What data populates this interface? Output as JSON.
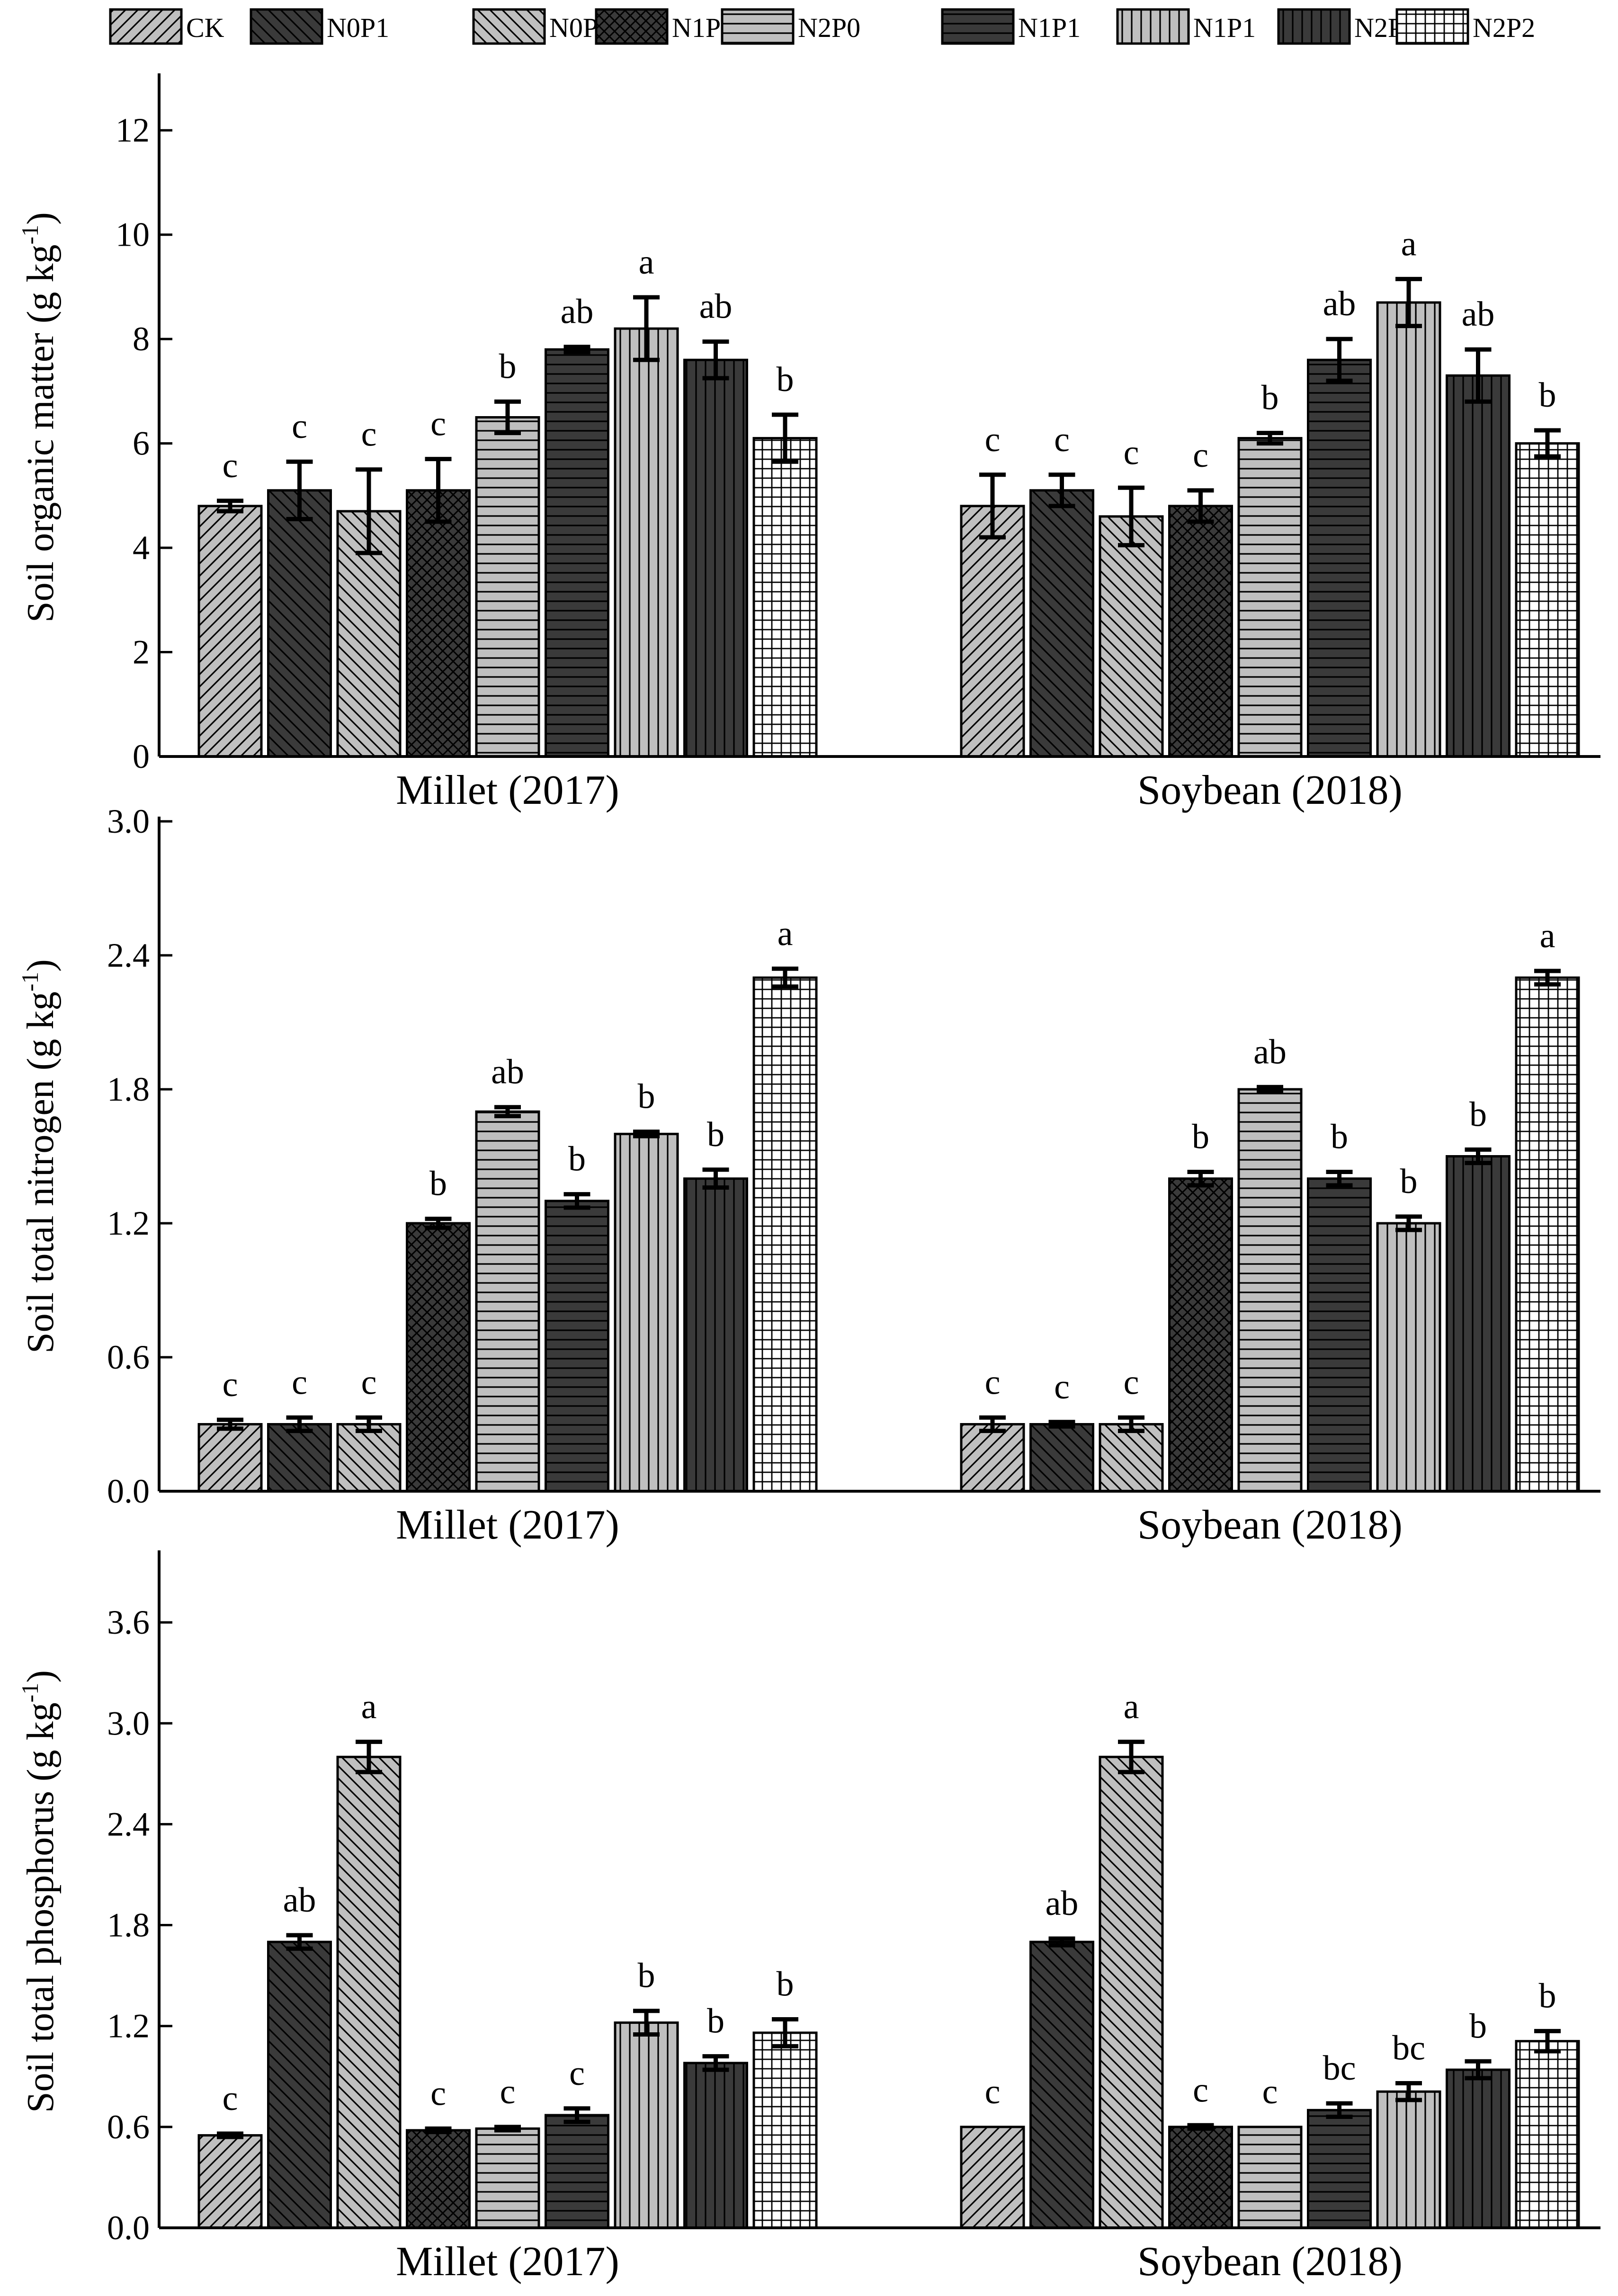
{
  "legend": {
    "entries": [
      {
        "label": "CK",
        "pattern": "diag-right",
        "fill": "#bfbfbf"
      },
      {
        "label": "N0P1",
        "pattern": "diag-left",
        "fill": "#3a3a3a"
      },
      {
        "label": "N0P2",
        "pattern": "diag-left",
        "fill": "#bfbfbf"
      },
      {
        "label": "N1P0",
        "pattern": "crosshatch",
        "fill": "#3a3a3a"
      },
      {
        "label": "N2P0",
        "pattern": "horizontal",
        "fill": "#bfbfbf"
      },
      {
        "label": "N1P1",
        "pattern": "horizontal",
        "fill": "#3a3a3a"
      },
      {
        "label": "N1P1",
        "pattern": "vertical",
        "fill": "#bfbfbf"
      },
      {
        "label": "N2P1",
        "pattern": "vertical",
        "fill": "#3a3a3a"
      },
      {
        "label": "N2P2",
        "pattern": "grid",
        "fill": "#ffffff"
      }
    ]
  },
  "chart_data": [
    {
      "type": "bar",
      "ylabel": "Soil organic matter (g kg",
      "ylabel_sup": "-1",
      "ylabel_close": ")",
      "ylim": [
        0,
        13
      ],
      "yticks": [
        0,
        2,
        4,
        6,
        8,
        10,
        12
      ],
      "ytick_labels": [
        "0",
        "2",
        "4",
        "6",
        "8",
        "10",
        "12"
      ],
      "categories": [
        "Millet (2017)",
        "Soybean (2018)"
      ],
      "series_order": [
        "CK",
        "N0P1",
        "N0P2",
        "N1P0",
        "N2P0",
        "N1P1",
        "N1P1",
        "N2P1",
        "N2P2"
      ],
      "groups": [
        {
          "values": [
            4.8,
            5.1,
            4.7,
            5.1,
            6.5,
            7.8,
            8.2,
            7.6,
            6.1
          ],
          "errors": [
            0.1,
            0.55,
            0.8,
            0.6,
            0.3,
            0.05,
            0.6,
            0.35,
            0.45
          ],
          "letters": [
            "c",
            "c",
            "c",
            "c",
            "b",
            "ab",
            "a",
            "ab",
            "b"
          ]
        },
        {
          "values": [
            4.8,
            5.1,
            4.6,
            4.8,
            6.1,
            7.6,
            8.7,
            7.3,
            6.0
          ],
          "errors": [
            0.6,
            0.3,
            0.55,
            0.3,
            0.1,
            0.4,
            0.45,
            0.5,
            0.25
          ],
          "letters": [
            "c",
            "c",
            "c",
            "c",
            "b",
            "ab",
            "a",
            "ab",
            "b"
          ]
        }
      ]
    },
    {
      "type": "bar",
      "ylabel": "Soil total nitrogen (g kg",
      "ylabel_sup": "-1",
      "ylabel_close": ")",
      "ylim": [
        0,
        3.0
      ],
      "yticks": [
        0,
        0.6,
        1.2,
        1.8,
        2.4,
        3.0
      ],
      "ytick_labels": [
        "0.0",
        "0.6",
        "1.2",
        "1.8",
        "2.4",
        "3.0"
      ],
      "categories": [
        "Millet (2017)",
        "Soybean (2018)"
      ],
      "series_order": [
        "CK",
        "N0P1",
        "N0P2",
        "N1P0",
        "N2P0",
        "N1P1",
        "N1P1",
        "N2P1",
        "N2P2"
      ],
      "groups": [
        {
          "values": [
            0.3,
            0.3,
            0.3,
            1.2,
            1.7,
            1.3,
            1.6,
            1.4,
            2.3
          ],
          "errors": [
            0.02,
            0.03,
            0.03,
            0.02,
            0.02,
            0.03,
            0.01,
            0.04,
            0.04
          ],
          "letters": [
            "c",
            "c",
            "c",
            "b",
            "ab",
            "b",
            "b",
            "b",
            "a"
          ]
        },
        {
          "values": [
            0.3,
            0.3,
            0.3,
            1.4,
            1.8,
            1.4,
            1.2,
            1.5,
            2.3
          ],
          "errors": [
            0.03,
            0.01,
            0.03,
            0.03,
            0.01,
            0.03,
            0.03,
            0.03,
            0.03
          ],
          "letters": [
            "c",
            "c",
            "c",
            "b",
            "ab",
            "b",
            "b",
            "b",
            "a"
          ]
        }
      ]
    },
    {
      "type": "bar",
      "ylabel": "Soil total phosphorus (g kg",
      "ylabel_sup": "-1",
      "ylabel_close": ")",
      "ylim": [
        0,
        4.0
      ],
      "yticks": [
        0,
        0.6,
        1.2,
        1.8,
        2.4,
        3.0,
        3.6
      ],
      "ytick_labels": [
        "0.0",
        "0.6",
        "1.2",
        "1.8",
        "2.4",
        "3.0",
        "3.6"
      ],
      "categories": [
        "Millet (2017)",
        "Soybean (2018)"
      ],
      "series_order": [
        "CK",
        "N0P1",
        "N0P2",
        "N1P0",
        "N2P0",
        "N1P1",
        "N1P1",
        "N2P1",
        "N2P2"
      ],
      "groups": [
        {
          "values": [
            0.55,
            1.7,
            2.8,
            0.58,
            0.59,
            0.67,
            1.22,
            0.98,
            1.16
          ],
          "errors": [
            0.01,
            0.04,
            0.09,
            0.01,
            0.01,
            0.04,
            0.07,
            0.04,
            0.08
          ],
          "letters": [
            "c",
            "ab",
            "a",
            "c",
            "c",
            "c",
            "b",
            "b",
            "b"
          ]
        },
        {
          "values": [
            0.6,
            1.7,
            2.8,
            0.6,
            0.6,
            0.7,
            0.81,
            0.94,
            1.11
          ],
          "errors": [
            0.0,
            0.02,
            0.09,
            0.01,
            0.0,
            0.04,
            0.05,
            0.05,
            0.06
          ],
          "letters": [
            "c",
            "ab",
            "a",
            "c",
            "c",
            "bc",
            "bc",
            "b",
            "b"
          ]
        }
      ]
    }
  ]
}
